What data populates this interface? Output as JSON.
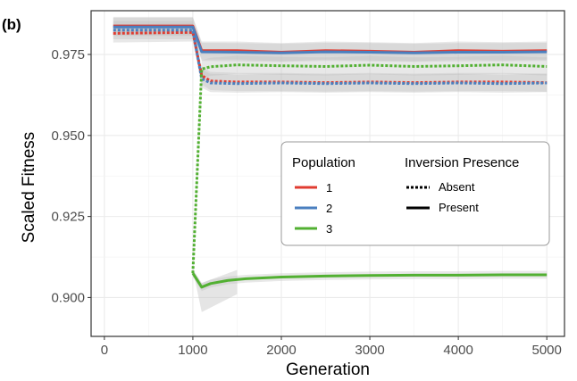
{
  "panel_label": "(b)",
  "chart_data": {
    "type": "line",
    "xlabel": "Generation",
    "ylabel": "Scaled Fitness",
    "xlim": [
      -150,
      5200
    ],
    "ylim": [
      0.888,
      0.9885
    ],
    "xticks": [
      0,
      1000,
      2000,
      3000,
      4000,
      5000
    ],
    "xtick_labels": [
      "0",
      "1000",
      "2000",
      "3000",
      "4000",
      "5000"
    ],
    "yticks": [
      0.9,
      0.925,
      0.95,
      0.975
    ],
    "ytick_labels": [
      "0.900",
      "0.925",
      "0.950",
      "0.975"
    ],
    "grid": true,
    "legend_placement": "center-right",
    "legend": {
      "population_title": "Population",
      "inversion_title": "Inversion Presence",
      "populations": [
        {
          "label": "1",
          "color": "#e03c31"
        },
        {
          "label": "2",
          "color": "#4a7fbf"
        },
        {
          "label": "3",
          "color": "#52b032"
        }
      ],
      "inversion": [
        {
          "label": "Absent",
          "style": "dotted"
        },
        {
          "label": "Present",
          "style": "solid"
        }
      ]
    },
    "series": [
      {
        "population": "1",
        "inversion": "Present",
        "color": "#e03c31",
        "x": [
          100,
          1000,
          1100,
          1500,
          2000,
          2500,
          3000,
          3500,
          4000,
          4500,
          5000
        ],
        "y": [
          0.9838,
          0.9838,
          0.9762,
          0.9762,
          0.9757,
          0.9762,
          0.976,
          0.9757,
          0.9762,
          0.976,
          0.9762
        ]
      },
      {
        "population": "2",
        "inversion": "Present",
        "color": "#4a7fbf",
        "x": [
          100,
          1000,
          1100,
          1500,
          2000,
          2500,
          3000,
          3500,
          4000,
          4500,
          5000
        ],
        "y": [
          0.9835,
          0.9835,
          0.9758,
          0.9757,
          0.9755,
          0.9758,
          0.9757,
          0.9755,
          0.9757,
          0.9757,
          0.9758
        ]
      },
      {
        "population": "1",
        "inversion": "Absent",
        "color": "#e03c31",
        "x": [
          100,
          1000,
          1100,
          1200,
          1500,
          2000,
          2500,
          3000,
          3500,
          4000,
          4500,
          5000
        ],
        "y": [
          0.9815,
          0.9818,
          0.9685,
          0.9668,
          0.9665,
          0.9665,
          0.9663,
          0.9665,
          0.9663,
          0.9665,
          0.9665,
          0.9663
        ]
      },
      {
        "population": "2",
        "inversion": "Absent",
        "color": "#4a7fbf",
        "x": [
          100,
          1000,
          1100,
          1200,
          1500,
          2000,
          2500,
          3000,
          3500,
          4000,
          4500,
          5000
        ],
        "y": [
          0.9825,
          0.9825,
          0.9675,
          0.9662,
          0.966,
          0.9662,
          0.966,
          0.9662,
          0.966,
          0.9662,
          0.966,
          0.9662
        ]
      },
      {
        "population": "3",
        "inversion": "Absent",
        "color": "#52b032",
        "x": [
          1000,
          1100,
          1200,
          1500,
          2000,
          2500,
          3000,
          3500,
          4000,
          4500,
          5000
        ],
        "y": [
          0.9075,
          0.9705,
          0.9712,
          0.9718,
          0.9715,
          0.9713,
          0.9717,
          0.9713,
          0.9715,
          0.9718,
          0.9713
        ]
      },
      {
        "population": "3",
        "inversion": "Present",
        "color": "#52b032",
        "x": [
          1000,
          1100,
          1200,
          1400,
          1600,
          2000,
          2500,
          3000,
          3500,
          4000,
          4500,
          5000
        ],
        "y": [
          0.9075,
          0.9032,
          0.9043,
          0.9053,
          0.9058,
          0.9063,
          0.9066,
          0.9068,
          0.9069,
          0.9069,
          0.907,
          0.907
        ]
      }
    ]
  }
}
